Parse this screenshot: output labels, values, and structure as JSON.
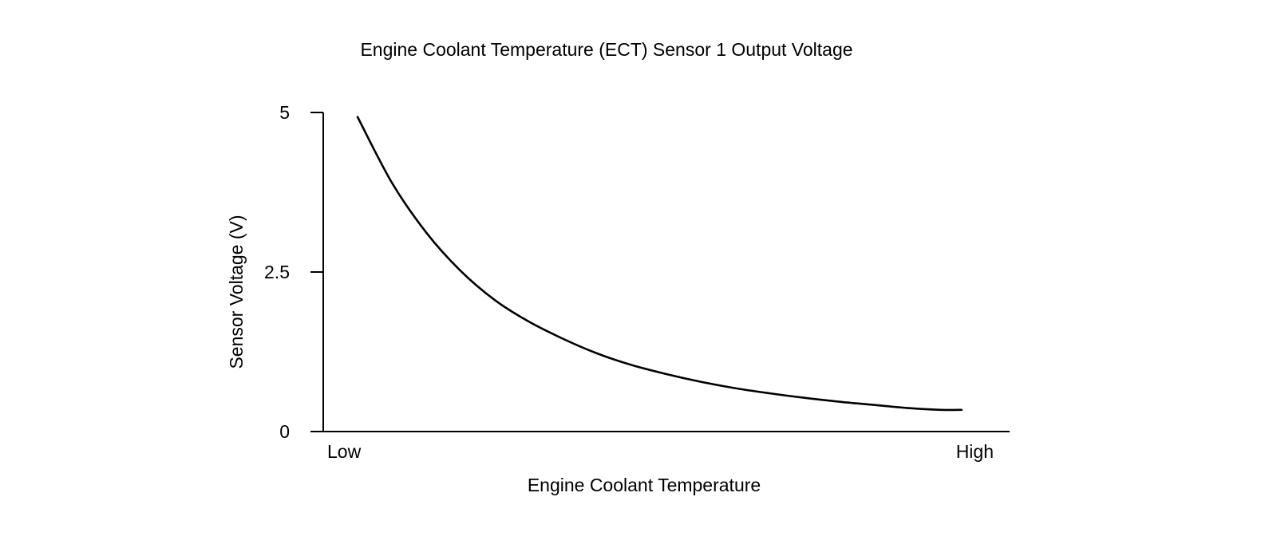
{
  "chart_data": {
    "type": "line",
    "title": "Engine Coolant Temperature (ECT) Sensor 1 Output Voltage",
    "xlabel": "Engine Coolant Temperature",
    "ylabel": "Sensor Voltage (V)",
    "x_tick_labels": [
      "Low",
      "High"
    ],
    "y_ticks": [
      {
        "value": 0,
        "label": "0"
      },
      {
        "value": 2.5,
        "label": "2.5"
      },
      {
        "value": 5,
        "label": "5"
      }
    ],
    "xlim": [
      0,
      1
    ],
    "ylim": [
      0,
      5
    ],
    "grid": false,
    "line_color": "#000000",
    "series": [
      {
        "x": [
          0.05,
          0.1,
          0.15,
          0.2,
          0.25,
          0.3,
          0.35,
          0.4,
          0.45,
          0.5,
          0.55,
          0.6,
          0.65,
          0.7,
          0.75,
          0.8,
          0.85,
          0.9,
          0.93
        ],
        "values": [
          4.93,
          3.9,
          3.12,
          2.52,
          2.06,
          1.72,
          1.45,
          1.22,
          1.04,
          0.9,
          0.78,
          0.68,
          0.6,
          0.53,
          0.47,
          0.42,
          0.37,
          0.34,
          0.34
        ]
      }
    ]
  }
}
